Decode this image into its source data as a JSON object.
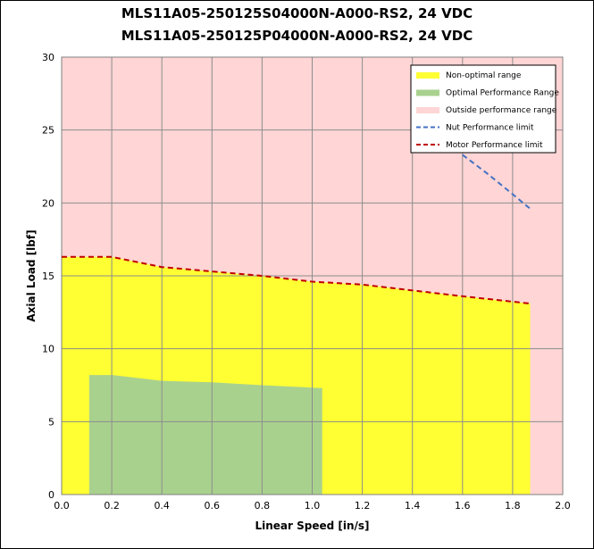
{
  "chart_data": {
    "type": "area",
    "title_lines": [
      "MLS11A05-250125S04000N-A000-RS2, 24 VDC",
      "MLS11A05-250125P04000N-A000-RS2, 24 VDC"
    ],
    "xlabel": "Linear Speed [in/s]",
    "ylabel": "Axial Load [lbf]",
    "xlim": [
      0,
      2.0
    ],
    "ylim": [
      0,
      30
    ],
    "xticks": [
      "0.0",
      "0.2",
      "0.4",
      "0.6",
      "0.8",
      "1.0",
      "1.2",
      "1.4",
      "1.6",
      "1.8",
      "2.0"
    ],
    "yticks": [
      "0",
      "5",
      "10",
      "15",
      "20",
      "25",
      "30"
    ],
    "grid": true,
    "legend_position": "top-right",
    "series": [
      {
        "name": "Non-optimal range",
        "kind": "area",
        "color": "#ffff33",
        "x": [
          0.0,
          0.2,
          0.4,
          0.6,
          0.8,
          1.0,
          1.2,
          1.4,
          1.6,
          1.87
        ],
        "y": [
          16.3,
          16.3,
          15.6,
          15.3,
          15.0,
          14.6,
          14.4,
          14.0,
          13.6,
          13.1
        ]
      },
      {
        "name": "Optimal Performance Range",
        "kind": "area",
        "color": "#a9d18e",
        "x": [
          0.11,
          0.2,
          0.4,
          0.6,
          0.8,
          1.04
        ],
        "y": [
          8.2,
          8.2,
          7.8,
          7.7,
          7.5,
          7.3
        ]
      },
      {
        "name": "Outside performance range",
        "kind": "background",
        "color": "#ffd5d5"
      },
      {
        "name": "Nut Performance limit",
        "kind": "dashed-line",
        "color": "#4472c4",
        "x": [
          1.6,
          1.7,
          1.8,
          1.87
        ],
        "y": [
          23.3,
          22.0,
          20.6,
          19.6
        ]
      },
      {
        "name": "Motor Performance limit",
        "kind": "dashed-line",
        "color": "#c00000",
        "x": [
          0.0,
          0.2,
          0.4,
          0.6,
          0.8,
          1.0,
          1.2,
          1.4,
          1.6,
          1.87
        ],
        "y": [
          16.3,
          16.3,
          15.6,
          15.3,
          15.0,
          14.6,
          14.4,
          14.0,
          13.6,
          13.1
        ]
      }
    ]
  }
}
